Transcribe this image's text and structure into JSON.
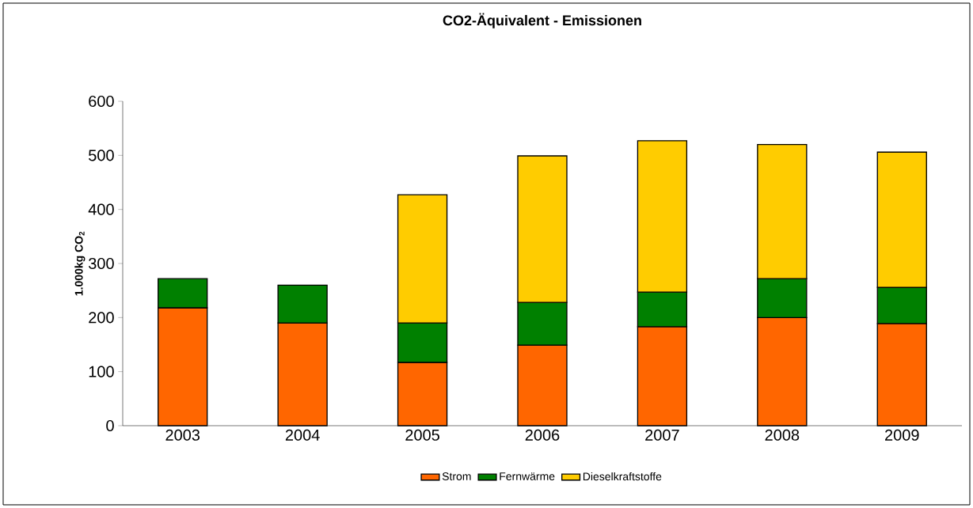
{
  "chart_data": {
    "type": "bar",
    "title": "CO2-Äquivalent - Emissionen",
    "ylabel": "1.000kg CO$_{2}$",
    "categories": [
      "2003",
      "2004",
      "2005",
      "2006",
      "2007",
      "2008",
      "2009"
    ],
    "stacked": true,
    "series": [
      {
        "name": "Strom",
        "color": "#ff6600",
        "values": [
          218,
          190,
          117,
          149,
          183,
          200,
          189
        ]
      },
      {
        "name": "Fernwärme",
        "color": "#008000",
        "values": [
          54,
          70,
          73,
          79,
          64,
          72,
          67
        ]
      },
      {
        "name": "Dieselkraftstoffe",
        "color": "#ffcc00",
        "values": [
          null,
          null,
          237,
          271,
          280,
          248,
          250
        ]
      }
    ],
    "ylim": [
      0,
      600
    ],
    "yticks": [
      0,
      100,
      200,
      300,
      400,
      500,
      600
    ],
    "grid": false,
    "legend": "bottom"
  }
}
